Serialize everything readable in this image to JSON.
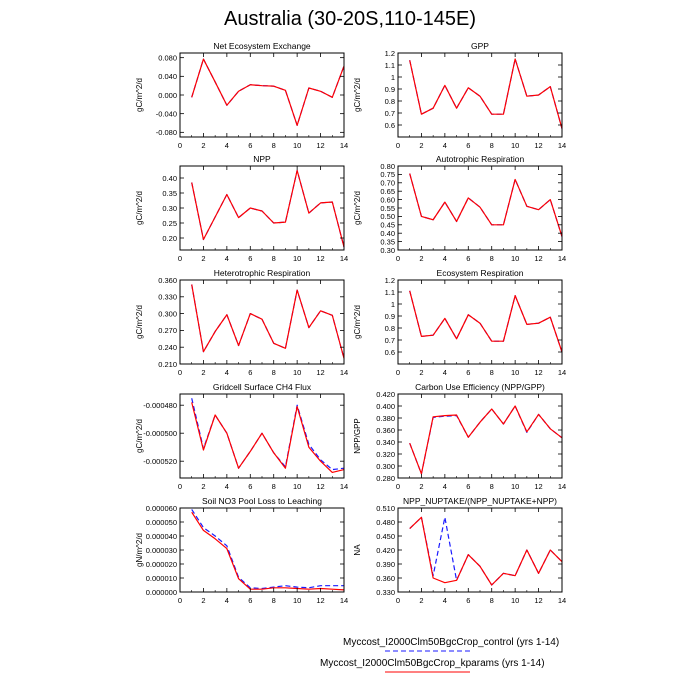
{
  "title": "Australia (30-20S,110-145E)",
  "legend": [
    {
      "name": "Myccost_I2000Clm50BgcCrop_control (yrs 1-14)",
      "color": "#1a1aff",
      "dash": true
    },
    {
      "name": "Myccost_I2000Clm50BgcCrop_kparams (yrs 1-14)",
      "color": "#ff0000",
      "dash": false
    }
  ],
  "chart_data": [
    {
      "type": "line",
      "title": "Net Ecosystem Exchange",
      "ylabel": "gC/m^2/d",
      "xlim": [
        0,
        14
      ],
      "ylim": [
        -0.09,
        0.09
      ],
      "xticks": [
        0,
        2,
        4,
        6,
        8,
        10,
        12,
        14
      ],
      "yticks": [
        -0.08,
        -0.04,
        0,
        0.04,
        0.08
      ],
      "yticklabels": [
        "-0.080",
        "-0.040",
        "0.000",
        "0.040",
        "0.080"
      ],
      "x": [
        1,
        2,
        3,
        4,
        5,
        6,
        7,
        8,
        9,
        10,
        11,
        12,
        13,
        14
      ],
      "series": [
        {
          "values": [
            -0.005,
            0.077,
            0.028,
            -0.022,
            0.008,
            0.022,
            0.02,
            0.019,
            0.01,
            -0.065,
            0.015,
            0.008,
            -0.005,
            0.062
          ]
        },
        {
          "values": [
            -0.005,
            0.077,
            0.028,
            -0.022,
            0.008,
            0.022,
            0.02,
            0.019,
            0.01,
            -0.065,
            0.015,
            0.008,
            -0.005,
            0.062
          ]
        }
      ]
    },
    {
      "type": "line",
      "title": "GPP",
      "ylabel": "gC/m^2/d",
      "xlim": [
        0,
        14
      ],
      "ylim": [
        0.5,
        1.2
      ],
      "xticks": [
        0,
        2,
        4,
        6,
        8,
        10,
        12,
        14
      ],
      "yticks": [
        0.6,
        0.7,
        0.8,
        0.9,
        1.0,
        1.1,
        1.2
      ],
      "yticklabels": [
        "0.6",
        "0.7",
        "0.8",
        "0.9",
        "1",
        "1.1",
        "1.2"
      ],
      "x": [
        1,
        2,
        3,
        4,
        5,
        6,
        7,
        8,
        9,
        10,
        11,
        12,
        13,
        14
      ],
      "series": [
        {
          "values": [
            1.14,
            0.69,
            0.74,
            0.93,
            0.74,
            0.91,
            0.84,
            0.69,
            0.69,
            1.15,
            0.84,
            0.85,
            0.92,
            0.57
          ]
        },
        {
          "values": [
            1.14,
            0.69,
            0.74,
            0.93,
            0.74,
            0.91,
            0.84,
            0.69,
            0.69,
            1.15,
            0.84,
            0.85,
            0.92,
            0.57
          ]
        }
      ]
    },
    {
      "type": "line",
      "title": "NPP",
      "ylabel": "gC/m^2/d",
      "xlim": [
        0,
        14
      ],
      "ylim": [
        0.16,
        0.44
      ],
      "xticks": [
        0,
        2,
        4,
        6,
        8,
        10,
        12,
        14
      ],
      "yticks": [
        0.2,
        0.25,
        0.3,
        0.35,
        0.4
      ],
      "yticklabels": [
        "0.20",
        "0.25",
        "0.30",
        "0.35",
        "0.40"
      ],
      "x": [
        1,
        2,
        3,
        4,
        5,
        6,
        7,
        8,
        9,
        10,
        11,
        12,
        13,
        14
      ],
      "series": [
        {
          "values": [
            0.385,
            0.195,
            0.27,
            0.345,
            0.268,
            0.3,
            0.29,
            0.25,
            0.253,
            0.425,
            0.283,
            0.317,
            0.32,
            0.17
          ]
        },
        {
          "values": [
            0.385,
            0.195,
            0.27,
            0.345,
            0.268,
            0.3,
            0.29,
            0.25,
            0.253,
            0.425,
            0.283,
            0.317,
            0.32,
            0.17
          ]
        }
      ]
    },
    {
      "type": "line",
      "title": "Autotrophic Respiration",
      "ylabel": "gC/m^2/d",
      "xlim": [
        0,
        14
      ],
      "ylim": [
        0.3,
        0.8
      ],
      "xticks": [
        0,
        2,
        4,
        6,
        8,
        10,
        12,
        14
      ],
      "yticks": [
        0.3,
        0.35,
        0.4,
        0.45,
        0.5,
        0.55,
        0.6,
        0.65,
        0.7,
        0.75,
        0.8
      ],
      "yticklabels": [
        "0.30",
        "0.35",
        "0.40",
        "0.45",
        "0.50",
        "0.55",
        "0.60",
        "0.65",
        "0.70",
        "0.75",
        "0.80"
      ],
      "x": [
        1,
        2,
        3,
        4,
        5,
        6,
        7,
        8,
        9,
        10,
        11,
        12,
        13,
        14
      ],
      "series": [
        {
          "values": [
            0.755,
            0.5,
            0.48,
            0.585,
            0.47,
            0.61,
            0.555,
            0.45,
            0.45,
            0.72,
            0.56,
            0.54,
            0.6,
            0.38
          ]
        },
        {
          "values": [
            0.755,
            0.5,
            0.48,
            0.585,
            0.47,
            0.61,
            0.555,
            0.45,
            0.45,
            0.72,
            0.56,
            0.54,
            0.6,
            0.38
          ]
        }
      ]
    },
    {
      "type": "line",
      "title": "Heterotrophic Respiration",
      "ylabel": "gC/m^2/d",
      "xlim": [
        0,
        14
      ],
      "ylim": [
        0.21,
        0.36
      ],
      "xticks": [
        0,
        2,
        4,
        6,
        8,
        10,
        12,
        14
      ],
      "yticks": [
        0.21,
        0.24,
        0.27,
        0.3,
        0.33,
        0.36
      ],
      "yticklabels": [
        "0.210",
        "0.240",
        "0.270",
        "0.300",
        "0.330",
        "0.360"
      ],
      "x": [
        1,
        2,
        3,
        4,
        5,
        6,
        7,
        8,
        9,
        10,
        11,
        12,
        13,
        14
      ],
      "series": [
        {
          "values": [
            0.352,
            0.232,
            0.268,
            0.298,
            0.243,
            0.3,
            0.29,
            0.247,
            0.238,
            0.342,
            0.275,
            0.305,
            0.297,
            0.22
          ]
        },
        {
          "values": [
            0.352,
            0.232,
            0.268,
            0.298,
            0.243,
            0.3,
            0.29,
            0.247,
            0.238,
            0.342,
            0.275,
            0.305,
            0.297,
            0.22
          ]
        }
      ]
    },
    {
      "type": "line",
      "title": "Ecosystem Respiration",
      "ylabel": "gC/m^2/d",
      "xlim": [
        0,
        14
      ],
      "ylim": [
        0.5,
        1.2
      ],
      "xticks": [
        0,
        2,
        4,
        6,
        8,
        10,
        12,
        14
      ],
      "yticks": [
        0.6,
        0.7,
        0.8,
        0.9,
        1.0,
        1.1,
        1.2
      ],
      "yticklabels": [
        "0.6",
        "0.7",
        "0.8",
        "0.9",
        "1",
        "1.1",
        "1.2"
      ],
      "x": [
        1,
        2,
        3,
        4,
        5,
        6,
        7,
        8,
        9,
        10,
        11,
        12,
        13,
        14
      ],
      "series": [
        {
          "values": [
            1.11,
            0.73,
            0.74,
            0.88,
            0.71,
            0.91,
            0.84,
            0.69,
            0.69,
            1.07,
            0.83,
            0.84,
            0.89,
            0.6
          ]
        },
        {
          "values": [
            1.11,
            0.73,
            0.74,
            0.88,
            0.71,
            0.91,
            0.84,
            0.69,
            0.69,
            1.07,
            0.83,
            0.84,
            0.89,
            0.6
          ]
        }
      ]
    },
    {
      "type": "line",
      "title": "Gridcell Surface CH4 Flux",
      "ylabel": "gC/m^2/d",
      "xlim": [
        0,
        14
      ],
      "ylim": [
        -0.000532,
        -0.000472
      ],
      "xticks": [
        0,
        2,
        4,
        6,
        8,
        10,
        12,
        14
      ],
      "yticks": [
        -0.00052,
        -0.0005,
        -0.00048
      ],
      "yticklabels": [
        "-0.000520",
        "-0.000500",
        "-0.000480"
      ],
      "x": [
        1,
        2,
        3,
        4,
        5,
        6,
        7,
        8,
        9,
        10,
        11,
        12,
        13,
        14
      ],
      "series": [
        {
          "values": [
            -0.000475,
            -0.000511,
            -0.000487,
            -0.0005,
            -0.000525,
            -0.000513,
            -0.0005,
            -0.000514,
            -0.000524,
            -0.00048,
            -0.000508,
            -0.000519,
            -0.000526,
            -0.000525
          ]
        },
        {
          "values": [
            -0.000478,
            -0.000512,
            -0.000487,
            -0.0005,
            -0.000525,
            -0.000513,
            -0.0005,
            -0.000514,
            -0.000525,
            -0.000481,
            -0.00051,
            -0.00052,
            -0.000528,
            -0.000526
          ]
        }
      ]
    },
    {
      "type": "line",
      "title": "Carbon Use Efficiency (NPP/GPP)",
      "ylabel": "NPP/GPP",
      "xlim": [
        0,
        14
      ],
      "ylim": [
        0.28,
        0.42
      ],
      "xticks": [
        0,
        2,
        4,
        6,
        8,
        10,
        12,
        14
      ],
      "yticks": [
        0.28,
        0.3,
        0.32,
        0.34,
        0.36,
        0.38,
        0.4,
        0.42
      ],
      "yticklabels": [
        "0.280",
        "0.300",
        "0.320",
        "0.340",
        "0.360",
        "0.380",
        "0.400",
        "0.420"
      ],
      "x": [
        1,
        2,
        3,
        4,
        5,
        6,
        7,
        8,
        9,
        10,
        11,
        12,
        13,
        14
      ],
      "series": [
        {
          "values": [
            0.338,
            0.287,
            0.381,
            0.383,
            0.384,
            0.348,
            0.373,
            0.395,
            0.37,
            0.4,
            0.356,
            0.386,
            0.362,
            0.347
          ]
        },
        {
          "values": [
            0.338,
            0.287,
            0.382,
            0.384,
            0.385,
            0.348,
            0.373,
            0.395,
            0.37,
            0.4,
            0.357,
            0.386,
            0.362,
            0.347
          ]
        }
      ]
    },
    {
      "type": "line",
      "title": "Soil NO3 Pool Loss to Leaching",
      "ylabel": "gN/m^2/d",
      "xlim": [
        0,
        14
      ],
      "ylim": [
        0,
        6e-05
      ],
      "xticks": [
        0,
        2,
        4,
        6,
        8,
        10,
        12,
        14
      ],
      "yticks": [
        0,
        1e-05,
        2e-05,
        3e-05,
        4e-05,
        5e-05,
        6e-05
      ],
      "yticklabels": [
        "0.000000",
        "0.000010",
        "0.000020",
        "0.000030",
        "0.000040",
        "0.000050",
        "0.000060"
      ],
      "x": [
        1,
        2,
        3,
        4,
        5,
        6,
        7,
        8,
        9,
        10,
        11,
        12,
        13,
        14
      ],
      "series": [
        {
          "values": [
            5.9e-05,
            4.6e-05,
            4e-05,
            3.3e-05,
            1.05e-05,
            3e-06,
            2.5e-06,
            3.5e-06,
            4.5e-06,
            3.5e-06,
            3e-06,
            4.5e-06,
            4.5e-06,
            4.5e-06
          ]
        },
        {
          "values": [
            5.7e-05,
            4.4e-05,
            3.8e-05,
            3.1e-05,
            9.5e-06,
            2e-06,
            2e-06,
            3e-06,
            3e-06,
            2.5e-06,
            2e-06,
            2.5e-06,
            2e-06,
            1.5e-06
          ]
        }
      ]
    },
    {
      "type": "line",
      "title": "NPP_NUPTAKE/(NPP_NUPTAKE+NPP)",
      "ylabel": "NA",
      "xlim": [
        0,
        14
      ],
      "ylim": [
        0.33,
        0.51
      ],
      "xticks": [
        0,
        2,
        4,
        6,
        8,
        10,
        12,
        14
      ],
      "yticks": [
        0.33,
        0.36,
        0.39,
        0.42,
        0.45,
        0.48,
        0.51
      ],
      "yticklabels": [
        "0.330",
        "0.360",
        "0.390",
        "0.420",
        "0.450",
        "0.480",
        "0.510"
      ],
      "x": [
        1,
        2,
        3,
        4,
        5,
        6,
        7,
        8,
        9,
        10,
        11,
        12,
        13,
        14
      ],
      "series": [
        {
          "values": [
            0.466,
            0.49,
            0.365,
            0.49,
            0.355,
            0.41,
            0.385,
            0.345,
            0.37,
            0.365,
            0.42,
            0.37,
            0.42,
            0.395
          ]
        },
        {
          "values": [
            0.466,
            0.49,
            0.36,
            0.35,
            0.355,
            0.41,
            0.385,
            0.345,
            0.37,
            0.365,
            0.42,
            0.37,
            0.42,
            0.395
          ]
        }
      ]
    }
  ]
}
